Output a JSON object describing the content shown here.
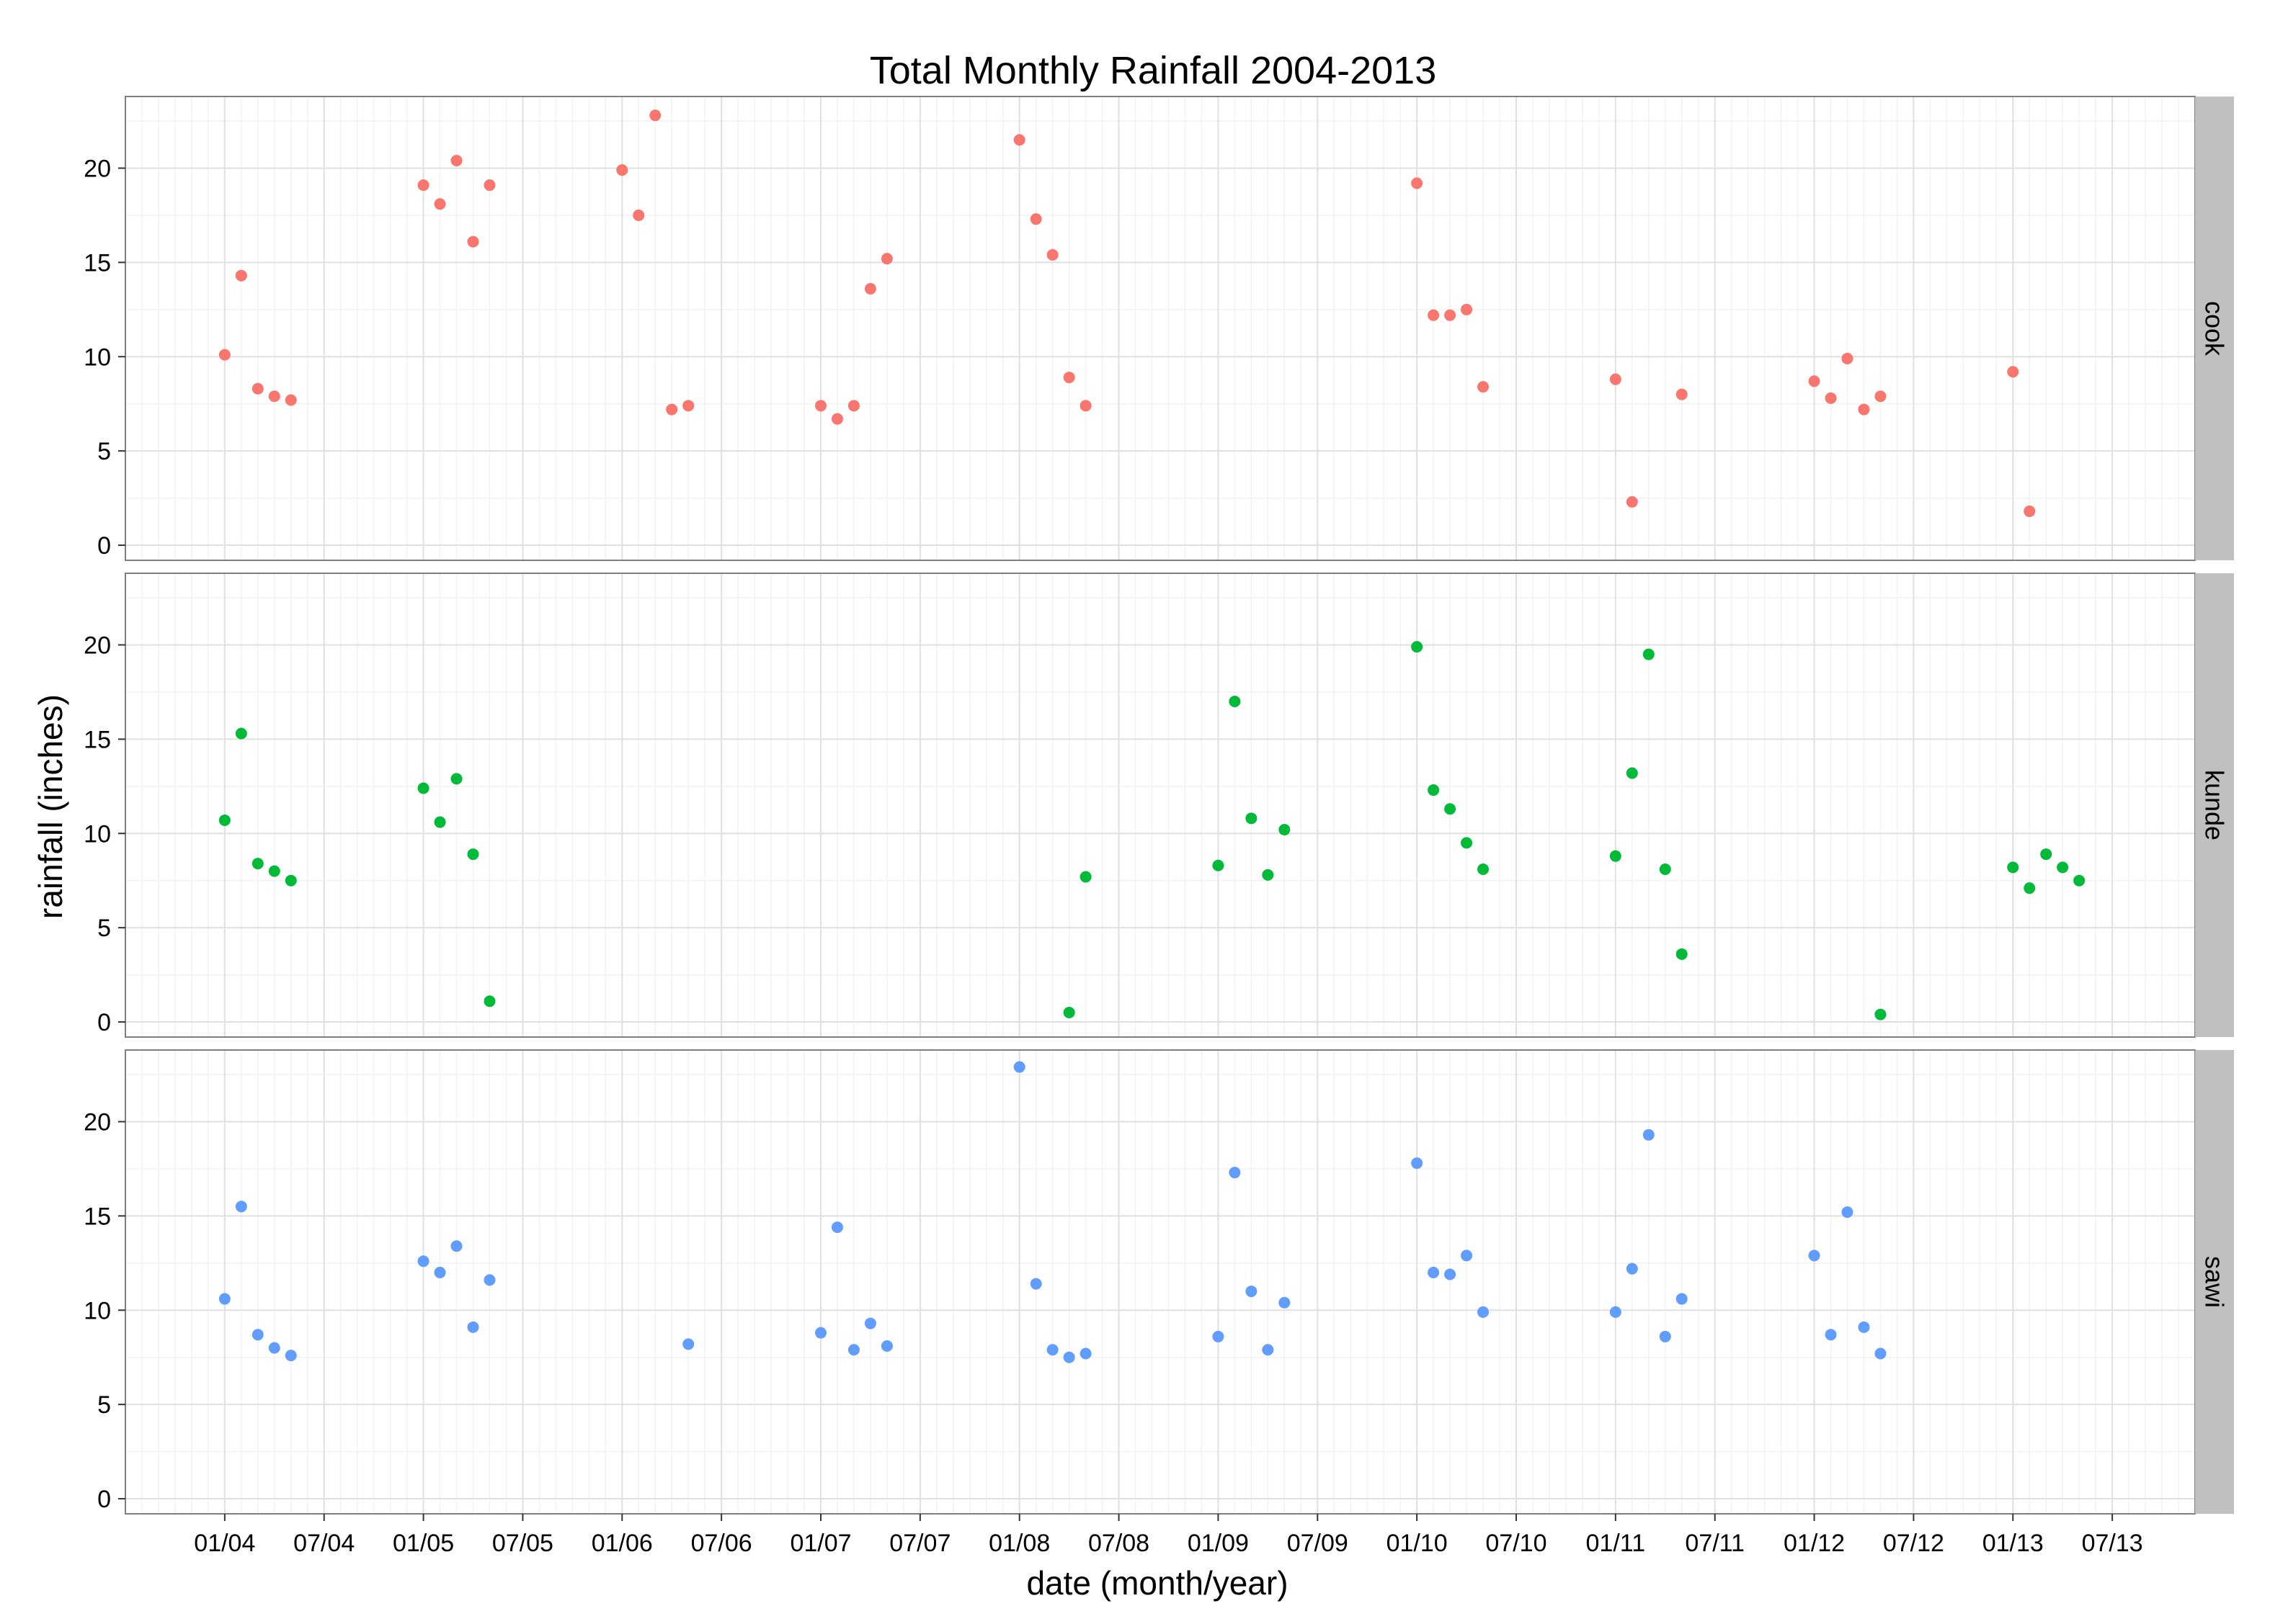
{
  "chart_data": {
    "type": "scatter",
    "title": "Total Monthly Rainfall 2004-2013",
    "xlabel": "date (month/year)",
    "ylabel": "rainfall (inches)",
    "x_tick_labels": [
      "01/04",
      "07/04",
      "01/05",
      "07/05",
      "01/06",
      "07/06",
      "01/07",
      "07/07",
      "01/08",
      "07/08",
      "01/09",
      "07/09",
      "01/10",
      "07/10",
      "01/11",
      "07/11",
      "01/12",
      "07/12",
      "01/13",
      "07/13"
    ],
    "y_ticks": [
      0,
      5,
      10,
      15,
      20
    ],
    "ylim": [
      -0.8,
      23.8
    ],
    "xlim": [
      "2003-07",
      "2013-12"
    ],
    "grid": true,
    "legend": "none",
    "facets": [
      {
        "label": "cook",
        "color": "#F8766D",
        "points": [
          {
            "x": "2004-01",
            "y": 10.1
          },
          {
            "x": "2004-02",
            "y": 14.3
          },
          {
            "x": "2004-03",
            "y": 8.3
          },
          {
            "x": "2004-04",
            "y": 7.9
          },
          {
            "x": "2004-05",
            "y": 7.7
          },
          {
            "x": "2005-01",
            "y": 19.1
          },
          {
            "x": "2005-02",
            "y": 18.1
          },
          {
            "x": "2005-03",
            "y": 20.4
          },
          {
            "x": "2005-04",
            "y": 16.1
          },
          {
            "x": "2005-05",
            "y": 19.1
          },
          {
            "x": "2006-01",
            "y": 19.9
          },
          {
            "x": "2006-02",
            "y": 17.5
          },
          {
            "x": "2006-03",
            "y": 22.8
          },
          {
            "x": "2006-04",
            "y": 7.2
          },
          {
            "x": "2006-05",
            "y": 7.4
          },
          {
            "x": "2007-01",
            "y": 7.4
          },
          {
            "x": "2007-02",
            "y": 6.7
          },
          {
            "x": "2007-03",
            "y": 7.4
          },
          {
            "x": "2007-04",
            "y": 13.6
          },
          {
            "x": "2007-05",
            "y": 15.2
          },
          {
            "x": "2008-01",
            "y": 21.5
          },
          {
            "x": "2008-02",
            "y": 17.3
          },
          {
            "x": "2008-03",
            "y": 15.4
          },
          {
            "x": "2008-04",
            "y": 8.9
          },
          {
            "x": "2008-05",
            "y": 7.4
          },
          {
            "x": "2010-01",
            "y": 19.2
          },
          {
            "x": "2010-02",
            "y": 12.2
          },
          {
            "x": "2010-03",
            "y": 12.2
          },
          {
            "x": "2010-04",
            "y": 12.5
          },
          {
            "x": "2010-05",
            "y": 8.4
          },
          {
            "x": "2011-01",
            "y": 8.8
          },
          {
            "x": "2011-02",
            "y": 2.3
          },
          {
            "x": "2011-05",
            "y": 8.0
          },
          {
            "x": "2012-01",
            "y": 8.7
          },
          {
            "x": "2012-02",
            "y": 7.8
          },
          {
            "x": "2012-03",
            "y": 9.9
          },
          {
            "x": "2012-04",
            "y": 7.2
          },
          {
            "x": "2012-05",
            "y": 7.9
          },
          {
            "x": "2013-01",
            "y": 9.2
          },
          {
            "x": "2013-02",
            "y": 1.8
          }
        ]
      },
      {
        "label": "kunde",
        "color": "#00BA38",
        "points": [
          {
            "x": "2004-01",
            "y": 10.7
          },
          {
            "x": "2004-02",
            "y": 15.3
          },
          {
            "x": "2004-03",
            "y": 8.4
          },
          {
            "x": "2004-04",
            "y": 8.0
          },
          {
            "x": "2004-05",
            "y": 7.5
          },
          {
            "x": "2005-01",
            "y": 12.4
          },
          {
            "x": "2005-02",
            "y": 10.6
          },
          {
            "x": "2005-03",
            "y": 12.9
          },
          {
            "x": "2005-04",
            "y": 8.9
          },
          {
            "x": "2005-05",
            "y": 1.1
          },
          {
            "x": "2008-04",
            "y": 0.5
          },
          {
            "x": "2008-05",
            "y": 7.7
          },
          {
            "x": "2009-01",
            "y": 8.3
          },
          {
            "x": "2009-02",
            "y": 17.0
          },
          {
            "x": "2009-03",
            "y": 10.8
          },
          {
            "x": "2009-04",
            "y": 7.8
          },
          {
            "x": "2009-05",
            "y": 10.2
          },
          {
            "x": "2010-01",
            "y": 19.9
          },
          {
            "x": "2010-02",
            "y": 12.3
          },
          {
            "x": "2010-03",
            "y": 11.3
          },
          {
            "x": "2010-04",
            "y": 9.5
          },
          {
            "x": "2010-05",
            "y": 8.1
          },
          {
            "x": "2011-01",
            "y": 8.8
          },
          {
            "x": "2011-02",
            "y": 13.2
          },
          {
            "x": "2011-03",
            "y": 19.5
          },
          {
            "x": "2011-04",
            "y": 8.1
          },
          {
            "x": "2011-05",
            "y": 3.6
          },
          {
            "x": "2012-05",
            "y": 0.4
          },
          {
            "x": "2013-01",
            "y": 8.2
          },
          {
            "x": "2013-02",
            "y": 7.1
          },
          {
            "x": "2013-03",
            "y": 8.9
          },
          {
            "x": "2013-04",
            "y": 8.2
          },
          {
            "x": "2013-05",
            "y": 7.5
          }
        ]
      },
      {
        "label": "sawi",
        "color": "#619CFF",
        "points": [
          {
            "x": "2004-01",
            "y": 10.6
          },
          {
            "x": "2004-02",
            "y": 15.5
          },
          {
            "x": "2004-03",
            "y": 8.7
          },
          {
            "x": "2004-04",
            "y": 8.0
          },
          {
            "x": "2004-05",
            "y": 7.6
          },
          {
            "x": "2005-01",
            "y": 12.6
          },
          {
            "x": "2005-02",
            "y": 12.0
          },
          {
            "x": "2005-03",
            "y": 13.4
          },
          {
            "x": "2005-04",
            "y": 9.1
          },
          {
            "x": "2005-05",
            "y": 11.6
          },
          {
            "x": "2006-05",
            "y": 8.2
          },
          {
            "x": "2007-01",
            "y": 8.8
          },
          {
            "x": "2007-02",
            "y": 14.4
          },
          {
            "x": "2007-03",
            "y": 7.9
          },
          {
            "x": "2007-04",
            "y": 9.3
          },
          {
            "x": "2007-05",
            "y": 8.1
          },
          {
            "x": "2008-01",
            "y": 22.9
          },
          {
            "x": "2008-02",
            "y": 11.4
          },
          {
            "x": "2008-03",
            "y": 7.9
          },
          {
            "x": "2008-04",
            "y": 7.5
          },
          {
            "x": "2008-05",
            "y": 7.7
          },
          {
            "x": "2009-01",
            "y": 8.6
          },
          {
            "x": "2009-02",
            "y": 17.3
          },
          {
            "x": "2009-03",
            "y": 11.0
          },
          {
            "x": "2009-04",
            "y": 7.9
          },
          {
            "x": "2009-05",
            "y": 10.4
          },
          {
            "x": "2010-01",
            "y": 17.8
          },
          {
            "x": "2010-02",
            "y": 12.0
          },
          {
            "x": "2010-03",
            "y": 11.9
          },
          {
            "x": "2010-04",
            "y": 12.9
          },
          {
            "x": "2010-05",
            "y": 9.9
          },
          {
            "x": "2011-01",
            "y": 9.9
          },
          {
            "x": "2011-02",
            "y": 12.2
          },
          {
            "x": "2011-03",
            "y": 19.3
          },
          {
            "x": "2011-04",
            "y": 8.6
          },
          {
            "x": "2011-05",
            "y": 10.6
          },
          {
            "x": "2012-01",
            "y": 12.9
          },
          {
            "x": "2012-02",
            "y": 8.7
          },
          {
            "x": "2012-03",
            "y": 15.2
          },
          {
            "x": "2012-04",
            "y": 9.1
          },
          {
            "x": "2012-05",
            "y": 7.7
          }
        ]
      }
    ]
  }
}
